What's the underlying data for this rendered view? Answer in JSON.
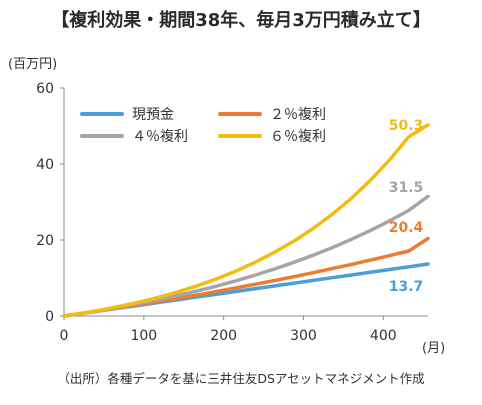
{
  "title": "【複利効果・期間38年、毎月3万円積み立て】",
  "source": "（出所）各種データを基に三井住友DSアセットマネジメント作成",
  "chart_data": {
    "type": "line",
    "title": "【複利効果・期間38年、毎月3万円積み立て】",
    "xlabel": "",
    "ylabel": "",
    "y_unit_label": "(百万円)",
    "x_unit_label": "(月)",
    "xlim": [
      0,
      456
    ],
    "ylim": [
      0,
      60
    ],
    "x_ticks": [
      0,
      100,
      200,
      300,
      400
    ],
    "y_ticks": [
      0,
      20,
      40,
      60
    ],
    "grid": false,
    "legend_position": "top-left",
    "x": [
      0,
      24,
      48,
      72,
      96,
      120,
      144,
      168,
      192,
      216,
      240,
      264,
      288,
      312,
      336,
      360,
      384,
      408,
      432,
      456
    ],
    "series": [
      {
        "name": "現預金",
        "color": "#4a9fd8",
        "values": [
          0,
          0.72,
          1.44,
          2.16,
          2.88,
          3.6,
          4.32,
          5.04,
          5.76,
          6.48,
          7.2,
          7.92,
          8.64,
          9.36,
          10.08,
          10.8,
          11.52,
          12.24,
          12.96,
          13.68
        ]
      },
      {
        "name": "２％複利",
        "color": "#ec7b33",
        "values": [
          0,
          0.73,
          1.47,
          2.25,
          3.05,
          3.87,
          4.71,
          5.58,
          6.48,
          7.41,
          8.36,
          9.34,
          10.35,
          11.4,
          12.47,
          13.58,
          14.72,
          15.89,
          17.1,
          20.4
        ]
      },
      {
        "name": "４％複利",
        "color": "#a5a5a5",
        "values": [
          0,
          0.75,
          1.56,
          2.43,
          3.37,
          4.38,
          5.47,
          6.65,
          7.93,
          9.3,
          10.79,
          12.39,
          14.12,
          15.99,
          18.0,
          20.18,
          22.53,
          25.06,
          27.8,
          31.5
        ]
      },
      {
        "name": "６％複利",
        "color": "#f4bb10",
        "values": [
          0,
          0.76,
          1.64,
          2.62,
          3.74,
          5.0,
          6.42,
          8.02,
          9.83,
          11.87,
          14.18,
          16.78,
          19.71,
          23.02,
          26.76,
          30.98,
          35.74,
          41.11,
          47.17,
          50.3
        ]
      }
    ],
    "end_labels": [
      "50.3",
      "31.5",
      "20.4",
      "13.7"
    ]
  }
}
